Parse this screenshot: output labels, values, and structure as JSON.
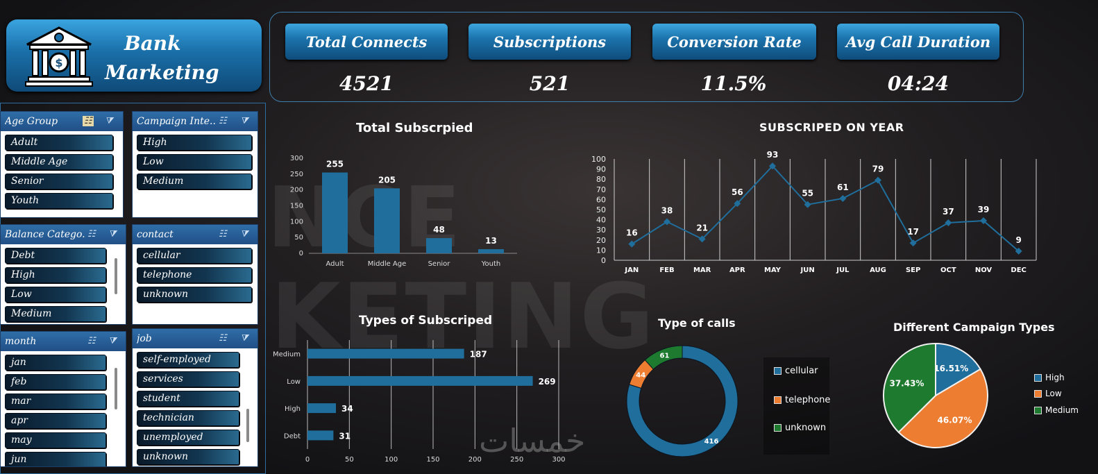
{
  "header": {
    "title_line1": "Bank",
    "title_line2": "Marketing"
  },
  "kpis": [
    {
      "label": "Total Connects",
      "value": "4521"
    },
    {
      "label": "Subscriptions",
      "value": "521"
    },
    {
      "label": "Conversion Rate",
      "value": "11.5%"
    },
    {
      "label": "Avg Call Duration",
      "value": "04:24"
    }
  ],
  "slicers": {
    "age_group": {
      "title": "Age Group",
      "items": [
        "Adult",
        "Middle Age",
        "Senior",
        "Youth"
      ]
    },
    "campaign": {
      "title": "Campaign Inte...",
      "items": [
        "High",
        "Low",
        "Medium"
      ]
    },
    "balance": {
      "title": "Balance Catego...",
      "items": [
        "Debt",
        "High",
        "Low",
        "Medium"
      ]
    },
    "contact": {
      "title": "contact",
      "items": [
        "cellular",
        "telephone",
        "unknown"
      ]
    },
    "month": {
      "title": "month",
      "items": [
        "jan",
        "feb",
        "mar",
        "apr",
        "may",
        "jun"
      ]
    },
    "job": {
      "title": "job",
      "items": [
        "self-employed",
        "services",
        "student",
        "technician",
        "unemployed",
        "unknown"
      ]
    }
  },
  "background_text": {
    "line1": "NCE",
    "line2": "KETING"
  },
  "watermark": "خمسات",
  "colors": {
    "accent": "#1f6e9c",
    "orange": "#ed7d31",
    "green": "#1e7a2e",
    "slicer_head": "#2a5f98"
  },
  "chart_data": [
    {
      "type": "bar",
      "title": "Total Subscrpied",
      "categories": [
        "Adult",
        "Middle Age",
        "Senior",
        "Youth"
      ],
      "values": [
        255,
        205,
        48,
        13
      ],
      "ylim": [
        0,
        300
      ],
      "yticks": [
        0,
        50,
        100,
        150,
        200,
        250,
        300
      ],
      "grid": false
    },
    {
      "type": "line",
      "title": "SUBSCRIPED ON YEAR",
      "categories": [
        "JAN",
        "FEB",
        "MAR",
        "APR",
        "MAY",
        "JUN",
        "JUL",
        "AUG",
        "SEP",
        "OCT",
        "NOV",
        "DEC"
      ],
      "values": [
        16,
        38,
        21,
        56,
        93,
        55,
        61,
        79,
        17,
        37,
        39,
        9
      ],
      "ylim": [
        0,
        100
      ],
      "yticks": [
        0,
        10,
        20,
        30,
        40,
        50,
        60,
        70,
        80,
        90,
        100
      ],
      "grid": true
    },
    {
      "type": "bar",
      "orientation": "horizontal",
      "title": "Types of Subscriped",
      "categories": [
        "Medium",
        "Low",
        "High",
        "Debt"
      ],
      "values": [
        187,
        269,
        34,
        31
      ],
      "xlim": [
        0,
        300
      ],
      "xticks": [
        0,
        50,
        100,
        150,
        200,
        250,
        300
      ],
      "grid": true
    },
    {
      "type": "pie",
      "variant": "donut",
      "title": "Type of calls",
      "categories": [
        "cellular",
        "telephone",
        "unknown"
      ],
      "values": [
        416,
        44,
        61
      ],
      "colors": [
        "#1f6e9c",
        "#ed7d31",
        "#1e7a2e"
      ],
      "legend": "right"
    },
    {
      "type": "pie",
      "title": "Different Campaign Types",
      "categories": [
        "High",
        "Low",
        "Medium"
      ],
      "values": [
        16.51,
        46.07,
        37.43
      ],
      "labels": [
        "16.51%",
        "46.07%",
        "37.43%"
      ],
      "colors": [
        "#1f6e9c",
        "#ed7d31",
        "#1e7a2e"
      ],
      "legend": "right"
    }
  ]
}
